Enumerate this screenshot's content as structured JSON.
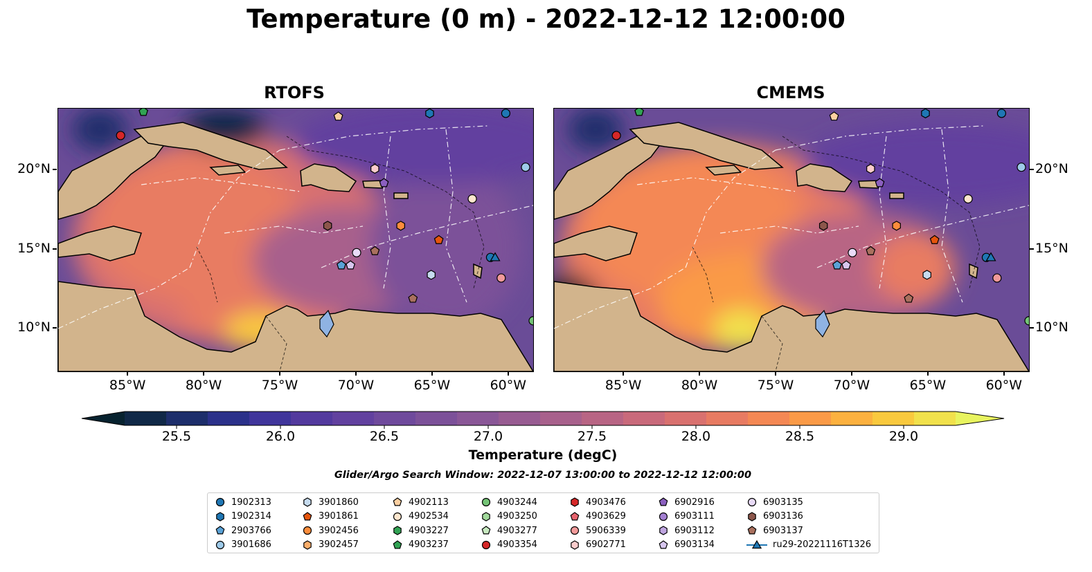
{
  "title": "Temperature (0 m) - 2022-12-12 12:00:00",
  "panels": [
    {
      "title": "RTOFS"
    },
    {
      "title": "CMEMS"
    }
  ],
  "axes": {
    "lon_labels": [
      "85°W",
      "80°W",
      "75°W",
      "70°W",
      "65°W",
      "60°W"
    ],
    "lon_values": [
      -85,
      -80,
      -75,
      -70,
      -65,
      -60
    ],
    "lat_labels": [
      "20°N",
      "15°N",
      "10°N"
    ],
    "lat_values": [
      20,
      15,
      10
    ],
    "lon_range": [
      -89.6,
      -58.4
    ],
    "lat_range": [
      7.3,
      23.9
    ]
  },
  "colorbar": {
    "label": "Temperature (degC)",
    "ticks": [
      "25.5",
      "26.0",
      "26.5",
      "27.0",
      "27.5",
      "28.0",
      "28.5",
      "29.0"
    ],
    "tick_values": [
      25.5,
      26.0,
      26.5,
      27.0,
      27.5,
      28.0,
      28.5,
      29.0
    ],
    "range": [
      25.25,
      29.25
    ],
    "extend": "both",
    "colors": [
      "#07222f",
      "#102847",
      "#1d2e6b",
      "#2b318a",
      "#40359b",
      "#533a9e",
      "#62419f",
      "#6f4a9c",
      "#7c5199",
      "#8a5797",
      "#985c92",
      "#a8618c",
      "#b86584",
      "#c96a7b",
      "#d9716f",
      "#e87b62",
      "#f48854",
      "#fa9a47",
      "#fcb13f",
      "#f9c93e",
      "#f1e14c",
      "#e8f45f"
    ]
  },
  "search_window": "Glider/Argo Search Window: 2022-12-07 13:00:00 to 2022-12-12 12:00:00",
  "legend": [
    {
      "label": "1902313",
      "marker": "circle",
      "color": "#1f77b4"
    },
    {
      "label": "1902314",
      "marker": "hexagon",
      "color": "#1f77b4"
    },
    {
      "label": "2903766",
      "marker": "pentagon",
      "color": "#5aa2d6"
    },
    {
      "label": "3901686",
      "marker": "circle",
      "color": "#9ecae9"
    },
    {
      "label": "3901860",
      "marker": "hexagon",
      "color": "#c6dbef"
    },
    {
      "label": "3901861",
      "marker": "pentagon",
      "color": "#e6550d"
    },
    {
      "label": "3902456",
      "marker": "circle",
      "color": "#fd8d3c"
    },
    {
      "label": "3902457",
      "marker": "hexagon",
      "color": "#fdae6b"
    },
    {
      "label": "4902113",
      "marker": "pentagon",
      "color": "#fdd0a2"
    },
    {
      "label": "4902534",
      "marker": "circle",
      "color": "#fee6ce"
    },
    {
      "label": "4903227",
      "marker": "hexagon",
      "color": "#31a354"
    },
    {
      "label": "4903237",
      "marker": "pentagon",
      "color": "#31a354"
    },
    {
      "label": "4903244",
      "marker": "circle",
      "color": "#74c476"
    },
    {
      "label": "4903250",
      "marker": "hexagon",
      "color": "#a1d99b"
    },
    {
      "label": "4903277",
      "marker": "pentagon",
      "color": "#c7e9c0"
    },
    {
      "label": "4903354",
      "marker": "circle",
      "color": "#d62728"
    },
    {
      "label": "4903476",
      "marker": "hexagon",
      "color": "#d62728"
    },
    {
      "label": "4903629",
      "marker": "pentagon",
      "color": "#e7646e"
    },
    {
      "label": "5906339",
      "marker": "circle",
      "color": "#f29a9a"
    },
    {
      "label": "6902771",
      "marker": "hexagon",
      "color": "#fbcccc"
    },
    {
      "label": "6902916",
      "marker": "pentagon",
      "color": "#8b5fbf"
    },
    {
      "label": "6903111",
      "marker": "circle",
      "color": "#a37fd1"
    },
    {
      "label": "6903112",
      "marker": "hexagon",
      "color": "#bfa5e0"
    },
    {
      "label": "6903134",
      "marker": "pentagon",
      "color": "#d7c6ee"
    },
    {
      "label": "6903135",
      "marker": "circle",
      "color": "#e9dbf7"
    },
    {
      "label": "6903136",
      "marker": "hexagon",
      "color": "#8c564b"
    },
    {
      "label": "6903137",
      "marker": "pentagon",
      "color": "#a9705e"
    },
    {
      "label": "ru29-20221116T1326",
      "marker": "triangle-line",
      "color": "#1f77b4"
    }
  ],
  "floats": [
    {
      "marker": "circle",
      "color": "#d62728",
      "lon": -85.5,
      "lat": 22.2
    },
    {
      "marker": "pentagon",
      "color": "#31a354",
      "lon": -84.0,
      "lat": 23.7
    },
    {
      "marker": "pentagon",
      "color": "#fdd0a2",
      "lon": -71.2,
      "lat": 23.4
    },
    {
      "marker": "hexagon",
      "color": "#1f77b4",
      "lon": -65.2,
      "lat": 23.6
    },
    {
      "marker": "circle",
      "color": "#1f77b4",
      "lon": -60.2,
      "lat": 23.6
    },
    {
      "marker": "circle",
      "color": "#9ecae9",
      "lon": -58.9,
      "lat": 20.2
    },
    {
      "marker": "hexagon",
      "color": "#fbcccc",
      "lon": -68.8,
      "lat": 20.1
    },
    {
      "marker": "pentagon",
      "color": "#8b5fbf",
      "lon": -68.2,
      "lat": 19.2
    },
    {
      "marker": "circle",
      "color": "#fee6ce",
      "lon": -62.4,
      "lat": 18.2
    },
    {
      "marker": "hexagon",
      "color": "#8c564b",
      "lon": -71.9,
      "lat": 16.5
    },
    {
      "marker": "hexagon",
      "color": "#fd8d3c",
      "lon": -67.1,
      "lat": 16.5
    },
    {
      "marker": "pentagon",
      "color": "#e6550d",
      "lon": -64.6,
      "lat": 15.6
    },
    {
      "marker": "circle",
      "color": "#e9dbf7",
      "lon": -70.0,
      "lat": 14.8
    },
    {
      "marker": "pentagon",
      "color": "#a9705e",
      "lon": -68.8,
      "lat": 14.9
    },
    {
      "marker": "pentagon",
      "color": "#5aa2d6",
      "lon": -71.0,
      "lat": 14.0
    },
    {
      "marker": "pentagon",
      "color": "#d7c6ee",
      "lon": -70.4,
      "lat": 14.0
    },
    {
      "marker": "hexagon",
      "color": "#c6dbef",
      "lon": -65.1,
      "lat": 13.4
    },
    {
      "marker": "circle",
      "color": "#1f77b4",
      "lon": -61.2,
      "lat": 14.5
    },
    {
      "marker": "triangle",
      "color": "#1f77b4",
      "lon": -60.9,
      "lat": 14.5
    },
    {
      "marker": "circle",
      "color": "#f29a9a",
      "lon": -60.5,
      "lat": 13.2
    },
    {
      "marker": "pentagon",
      "color": "#a9705e",
      "lon": -66.3,
      "lat": 11.9
    },
    {
      "marker": "circle",
      "color": "#74c476",
      "lon": -58.4,
      "lat": 10.5
    }
  ]
}
